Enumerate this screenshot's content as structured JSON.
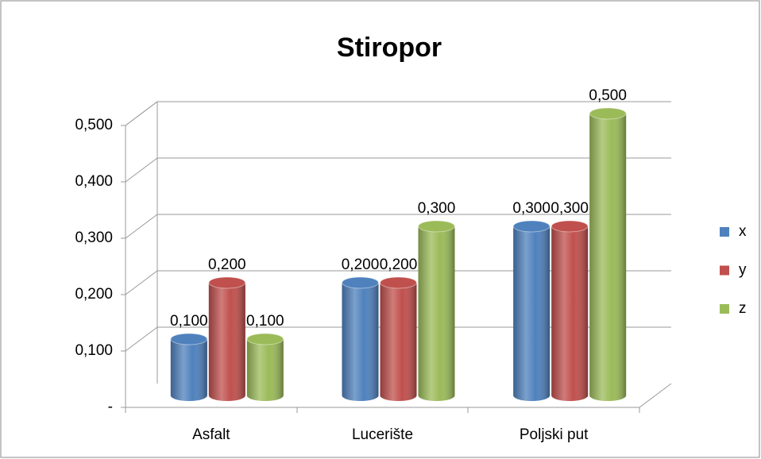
{
  "chart_data": {
    "type": "bar3d",
    "title": "Stiropor",
    "categories": [
      "Asfalt",
      "Lucerište",
      "Poljski put"
    ],
    "series": [
      {
        "name": "x",
        "color": "#4f81bd",
        "values": [
          0.1,
          0.2,
          0.3
        ],
        "value_labels": [
          "0,100",
          "0,200",
          "0,300"
        ]
      },
      {
        "name": "y",
        "color": "#c0504d",
        "values": [
          0.2,
          0.2,
          0.3
        ],
        "value_labels": [
          "0,200",
          "0,200",
          "0,300"
        ]
      },
      {
        "name": "z",
        "color": "#9bbb59",
        "values": [
          0.1,
          0.3,
          0.5
        ],
        "value_labels": [
          "0,100",
          "0,300",
          "0,500"
        ]
      }
    ],
    "ylim": [
      0,
      0.5
    ],
    "yticks": [
      {
        "value": 0,
        "label": "-"
      },
      {
        "value": 0.1,
        "label": "0,100"
      },
      {
        "value": 0.2,
        "label": "0,200"
      },
      {
        "value": 0.3,
        "label": "0,300"
      },
      {
        "value": 0.4,
        "label": "0,400"
      },
      {
        "value": 0.5,
        "label": "0,500"
      }
    ],
    "grid": true,
    "legend": "right"
  }
}
